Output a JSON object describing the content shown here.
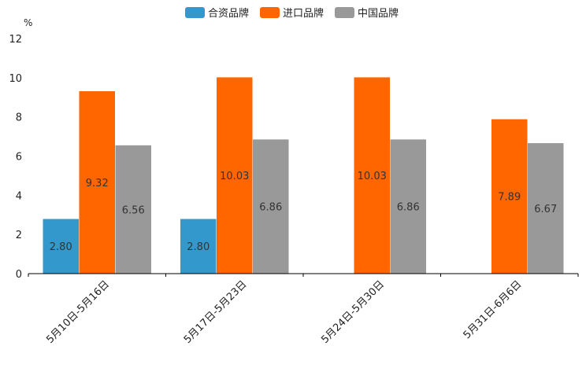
{
  "chart_data": {
    "type": "bar",
    "title": "",
    "unit": "%",
    "xlabel": "",
    "ylabel": "",
    "ylim": [
      0,
      12
    ],
    "yticks": [
      0,
      2,
      4,
      6,
      8,
      10,
      12
    ],
    "grid": false,
    "legend_position": "top-center",
    "categories": [
      "5月10日-5月16日",
      "5月17日-5月23日",
      "5月24日-5月30日",
      "5月31日-6月6日"
    ],
    "series": [
      {
        "name": "合资品牌",
        "color": "#3399cc",
        "values": [
          2.8,
          2.8,
          null,
          null
        ],
        "labels": [
          "2.80",
          "2.80",
          "",
          ""
        ]
      },
      {
        "name": "进口品牌",
        "color": "#ff6600",
        "values": [
          9.32,
          10.03,
          10.03,
          7.89
        ],
        "labels": [
          "9.32",
          "10.03",
          "10.03",
          "7.89"
        ]
      },
      {
        "name": "中国品牌",
        "color": "#999999",
        "values": [
          6.56,
          6.86,
          6.86,
          6.67
        ],
        "labels": [
          "6.56",
          "6.86",
          "6.86",
          "6.67"
        ]
      }
    ]
  }
}
